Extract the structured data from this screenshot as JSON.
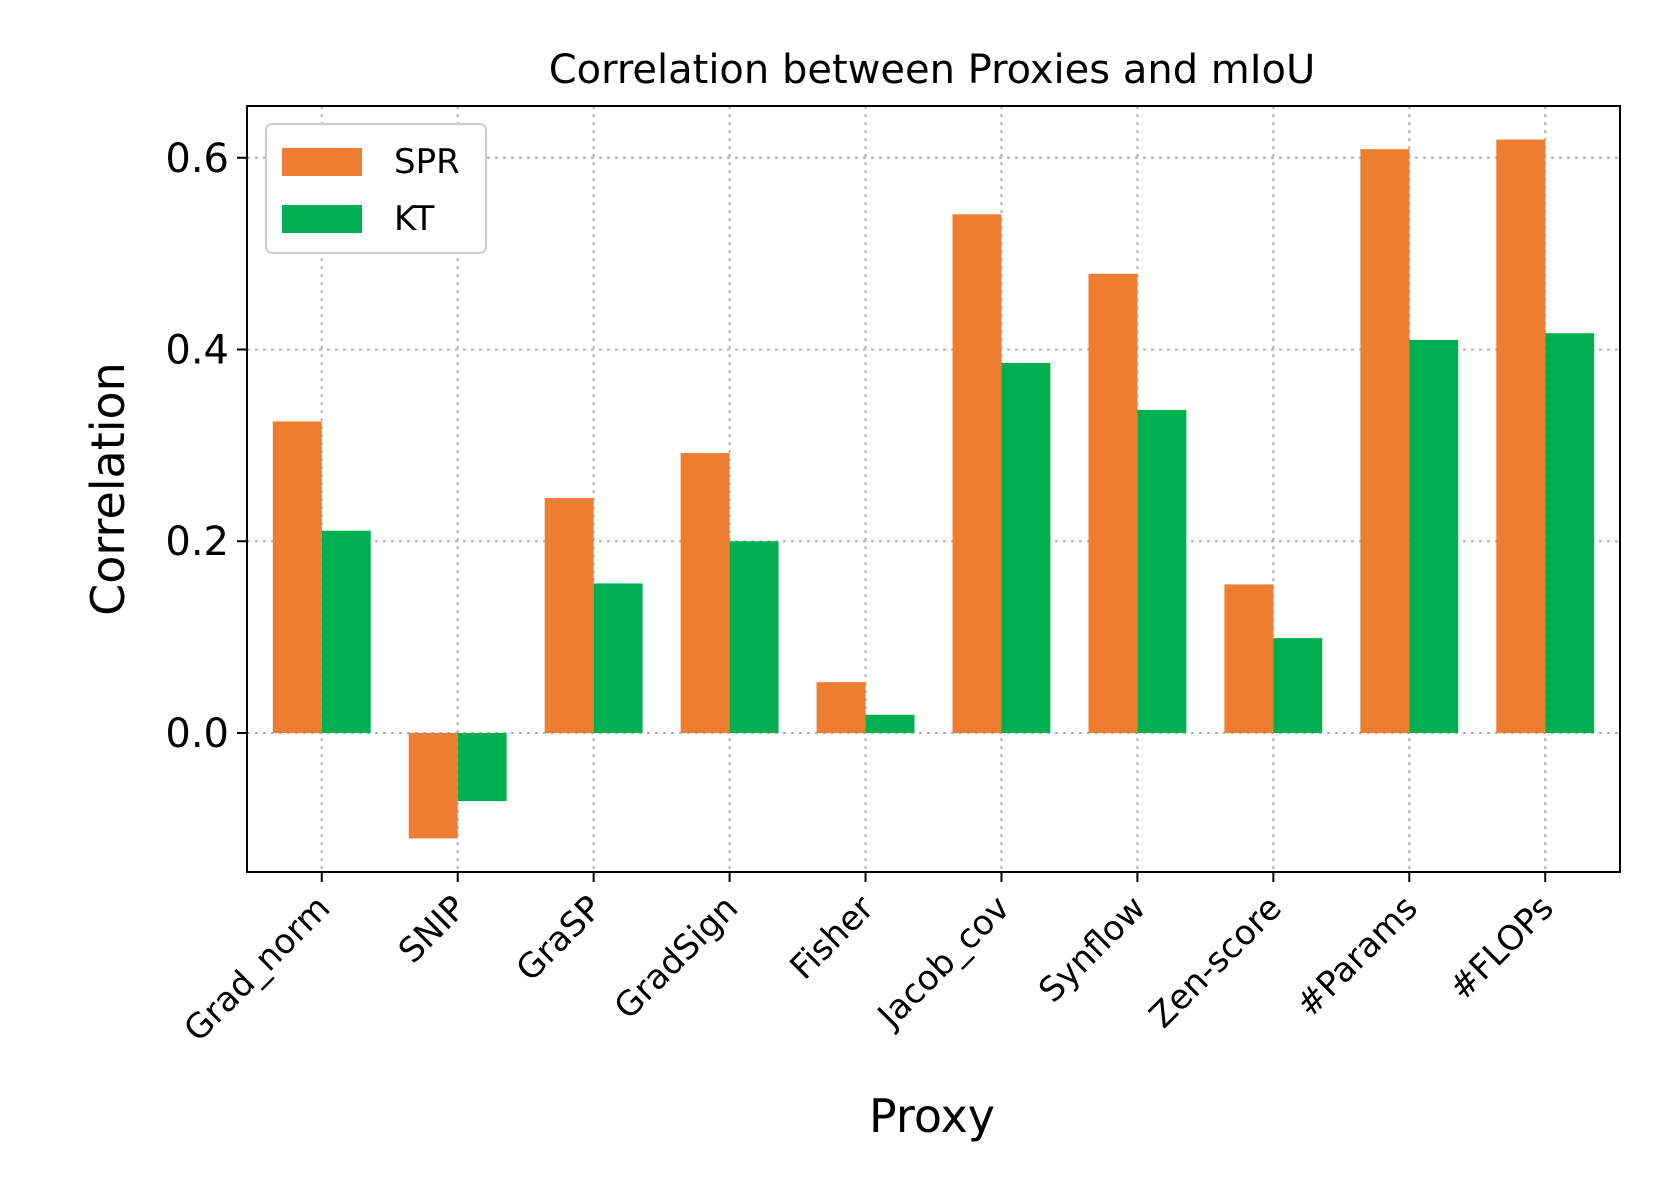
{
  "chart_data": {
    "type": "bar",
    "title": "Correlation between Proxies and mIoU",
    "xlabel": "Proxy",
    "ylabel": "Correlation",
    "categories": [
      "Grad_norm",
      "SNIP",
      "GraSP",
      "GradSign",
      "Fisher",
      "Jacob_cov",
      "Synflow",
      "Zen-score",
      "#Params",
      "#FLOPs"
    ],
    "series": [
      {
        "name": "SPR",
        "color": "#ED7D31",
        "values": [
          0.325,
          -0.11,
          0.245,
          0.292,
          0.053,
          0.541,
          0.479,
          0.155,
          0.609,
          0.619
        ]
      },
      {
        "name": "KT",
        "color": "#00B050",
        "values": [
          0.211,
          -0.071,
          0.156,
          0.2,
          0.019,
          0.386,
          0.337,
          0.099,
          0.41,
          0.417
        ]
      }
    ],
    "ylim": [
      -0.145,
      0.654
    ],
    "yticks": [
      0.0,
      0.2,
      0.4,
      0.6
    ],
    "ytick_labels": [
      "0.0",
      "0.2",
      "0.4",
      "0.6"
    ],
    "grid": true,
    "legend_position": "top-left"
  }
}
